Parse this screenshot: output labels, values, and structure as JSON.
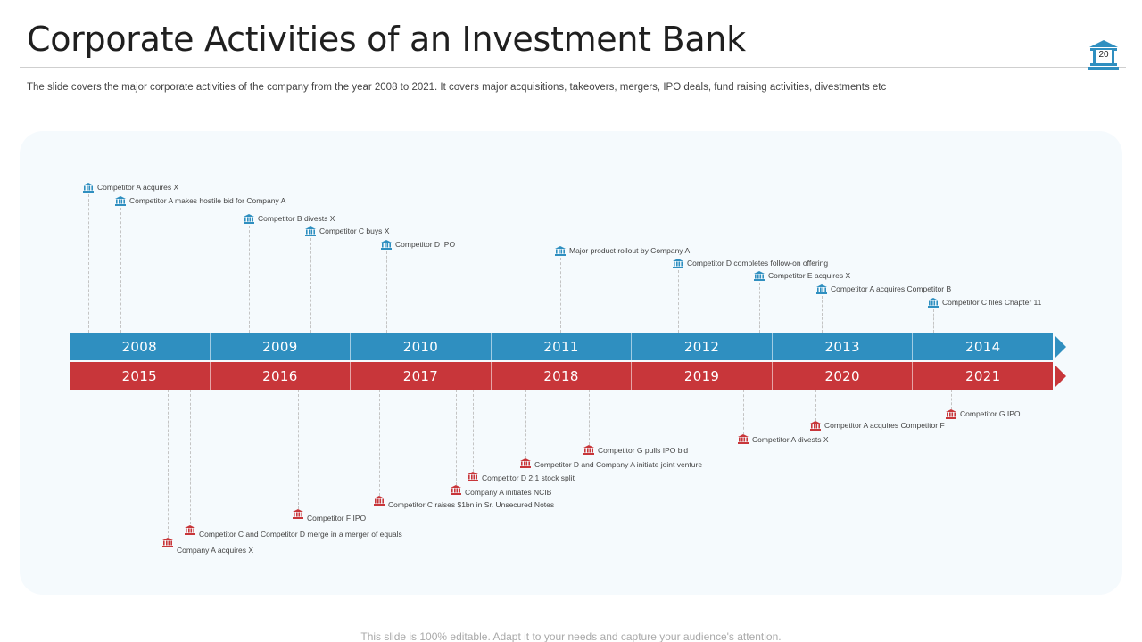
{
  "header": {
    "title": "Corporate Activities of an Investment Bank",
    "page_number": "20",
    "subtitle": "The slide covers the major corporate activities of the company from the year 2008 to 2021. It covers major acquisitions, takeovers, mergers, IPO deals, fund raising activities, divestments etc"
  },
  "timeline": {
    "top_years": [
      "2008",
      "2009",
      "2010",
      "2011",
      "2012",
      "2013",
      "2014"
    ],
    "bottom_years": [
      "2015",
      "2016",
      "2017",
      "2018",
      "2019",
      "2020",
      "2021"
    ],
    "top_events": [
      "Competitor A acquires X",
      "Competitor A makes hostile bid for Company A",
      "Competitor B divests X",
      "Competitor C buys X",
      "Competitor D IPO",
      "Major product rollout by Company A",
      "Competitor D completes follow-on offering",
      "Competitor E acquires X",
      "Competitor A acquires Competitor B",
      "Competitor C files Chapter 11"
    ],
    "bottom_events": [
      "Company A acquires X",
      "Competitor C and Competitor D merge in a merger of equals",
      "Competitor F IPO",
      "Competitor C raises $1bn in Sr. Unsecured Notes",
      "Company A initiates NCIB",
      "Competitor D 2:1 stock split",
      "Competitor D and Company A initiate joint venture",
      "Competitor G pulls IPO bid",
      "Competitor A divests X",
      "Competitor A acquires Competitor F",
      "Competitor G IPO"
    ]
  },
  "colors": {
    "top_band": "#2f8fc0",
    "bottom_band": "#c8363a"
  },
  "footer": "This slide is 100% editable. Adapt it to your needs and capture your audience's attention."
}
